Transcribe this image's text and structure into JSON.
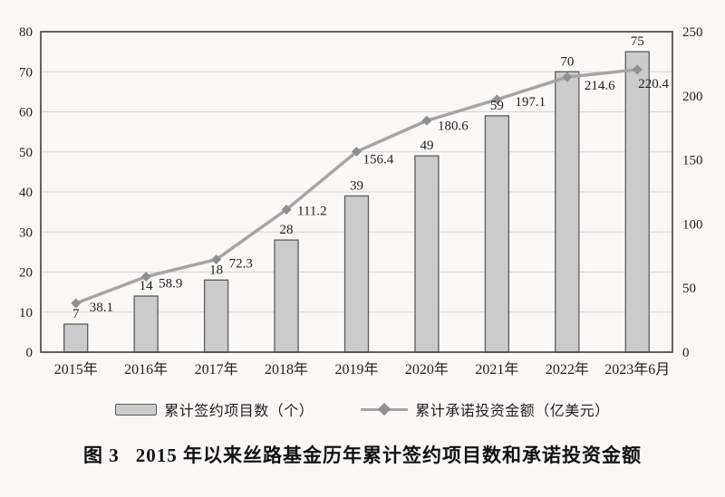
{
  "colors": {
    "page_bg": "#fbf9f4",
    "text": "#1f1f1f",
    "grid": "#d4d4d4",
    "plot_border": "#3d3d3d",
    "bar_fill": "#cbcbcb",
    "bar_stroke": "#5c5c5c",
    "line": "#a5a5a5",
    "marker": "#8f8f8f"
  },
  "chart_data": {
    "type": "bar+line",
    "categories": [
      "2015年",
      "2016年",
      "2017年",
      "2018年",
      "2019年",
      "2020年",
      "2021年",
      "2022年",
      "2023年6月"
    ],
    "series": [
      {
        "name": "累计签约项目数（个）",
        "type": "bar",
        "axis": "left",
        "values": [
          7,
          14,
          18,
          28,
          39,
          49,
          59,
          70,
          75
        ]
      },
      {
        "name": "累计承诺投资金额（亿美元）",
        "type": "line",
        "axis": "right",
        "values": [
          38.1,
          58.9,
          72.3,
          111.2,
          156.4,
          180.6,
          197.1,
          214.6,
          220.4
        ],
        "label_offsets": [
          [
            15,
            9
          ],
          [
            14,
            12
          ],
          [
            14,
            9
          ],
          [
            12,
            6
          ],
          [
            7,
            13
          ],
          [
            12,
            10
          ],
          [
            20,
            7
          ],
          [
            19,
            14
          ],
          [
            1,
            20
          ]
        ]
      }
    ],
    "left_axis": {
      "min": 0,
      "max": 80,
      "step": 10
    },
    "right_axis": {
      "min": 0,
      "max": 250,
      "step": 50
    },
    "grid": true,
    "data_labels": true,
    "legend_position": "bottom",
    "title": "图 3　2015 年以来丝路基金历年累计签约项目数和承诺投资金额"
  },
  "legend": {
    "bar_label": "累计签约项目数（个）",
    "line_label": "累计承诺投资金额（亿美元）"
  },
  "caption": {
    "figure_label": "图 3",
    "figure_title": "2015 年以来丝路基金历年累计签约项目数和承诺投资金额"
  }
}
